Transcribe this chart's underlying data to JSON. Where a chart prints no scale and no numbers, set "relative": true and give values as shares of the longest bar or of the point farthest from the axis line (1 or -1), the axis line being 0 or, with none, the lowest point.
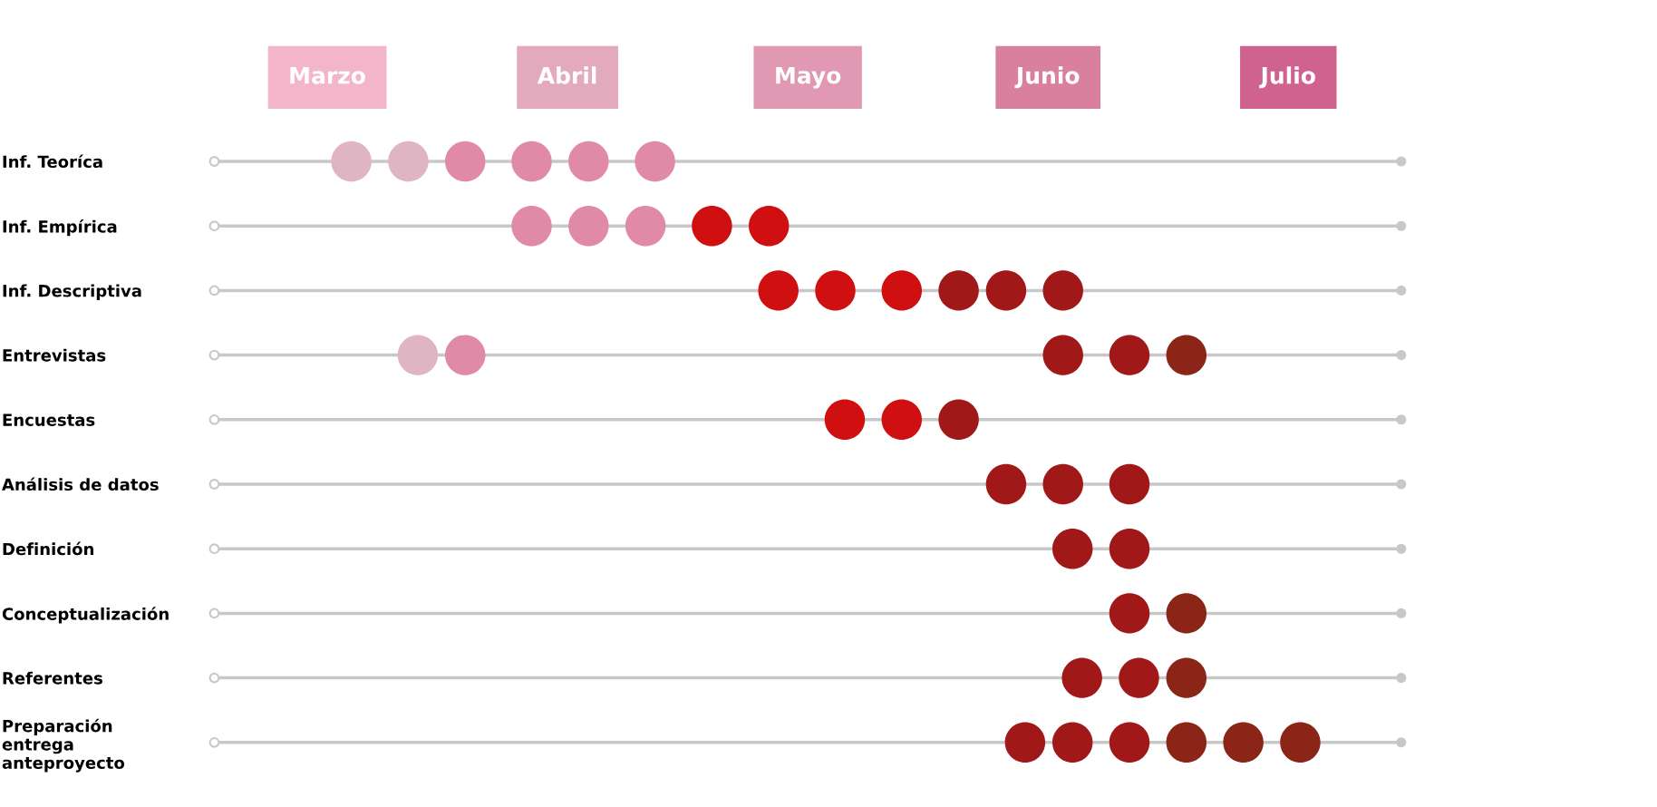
{
  "chart_data": {
    "type": "scatter",
    "orientation": "horizontal",
    "relative": true,
    "categories": [
      "Inf. Teoríca",
      "Inf. Empírica",
      "Inf. Descriptiva",
      "Entrevistas",
      "Encuestas",
      "Análisis de datos",
      "Definición",
      "Conceptualización",
      "Referentes",
      "Preparación\nentrega\nanteproyecto"
    ],
    "annotations": [
      "Marzo",
      "Abril",
      "Mayo",
      "Junio",
      "Julio"
    ],
    "marker": "circle",
    "grid": "y",
    "series": [
      {
        "values": [
          0,
          0.19,
          0.45,
          0.07,
          0.52,
          0.69,
          0.76,
          0.82,
          0.77,
          0.71
        ],
        "colors": [
          "#e0b5c3",
          "#e08aa8",
          "#d01010",
          "#e0b5c3",
          "#d01010",
          "#a01818",
          "#a01818",
          "#a01818",
          "#a01818",
          "#a01818"
        ]
      },
      {
        "values": [
          0.06,
          0.25,
          0.51,
          0.12,
          0.58,
          0.75,
          0.82,
          0.88,
          0.83,
          0.76
        ],
        "colors": [
          "#e0b5c3",
          "#e08aa8",
          "#d01010",
          "#e08aa8",
          "#d01010",
          "#a01818",
          "#a01818",
          "#8a2518",
          "#a01818",
          "#a01818"
        ]
      },
      {
        "values": [
          0.12,
          0.31,
          0.58,
          0.75,
          0.64,
          0.82,
          null,
          null,
          0.88,
          0.82
        ],
        "colors": [
          "#e08aa8",
          "#e08aa8",
          "#d01010",
          "#a01818",
          "#a01818",
          "#a01818",
          null,
          null,
          "#8a2518",
          "#a01818"
        ]
      },
      {
        "values": [
          0.19,
          0.38,
          0.64,
          0.82,
          null,
          null,
          null,
          null,
          null,
          0.88
        ],
        "colors": [
          "#e08aa8",
          "#d01010",
          "#a01818",
          "#a01818",
          null,
          null,
          null,
          null,
          null,
          "#8a2518"
        ]
      },
      {
        "values": [
          0.25,
          0.44,
          0.69,
          0.88,
          null,
          null,
          null,
          null,
          null,
          0.94
        ],
        "colors": [
          "#e08aa8",
          "#d01010",
          "#a01818",
          "#8a2518",
          null,
          null,
          null,
          null,
          null,
          "#8a2518"
        ]
      },
      {
        "values": [
          0.32,
          null,
          0.75,
          null,
          null,
          null,
          null,
          null,
          null,
          1
        ],
        "colors": [
          "#e08aa8",
          null,
          "#a01818",
          null,
          null,
          null,
          null,
          null,
          null,
          "#8a2518"
        ]
      }
    ]
  }
}
